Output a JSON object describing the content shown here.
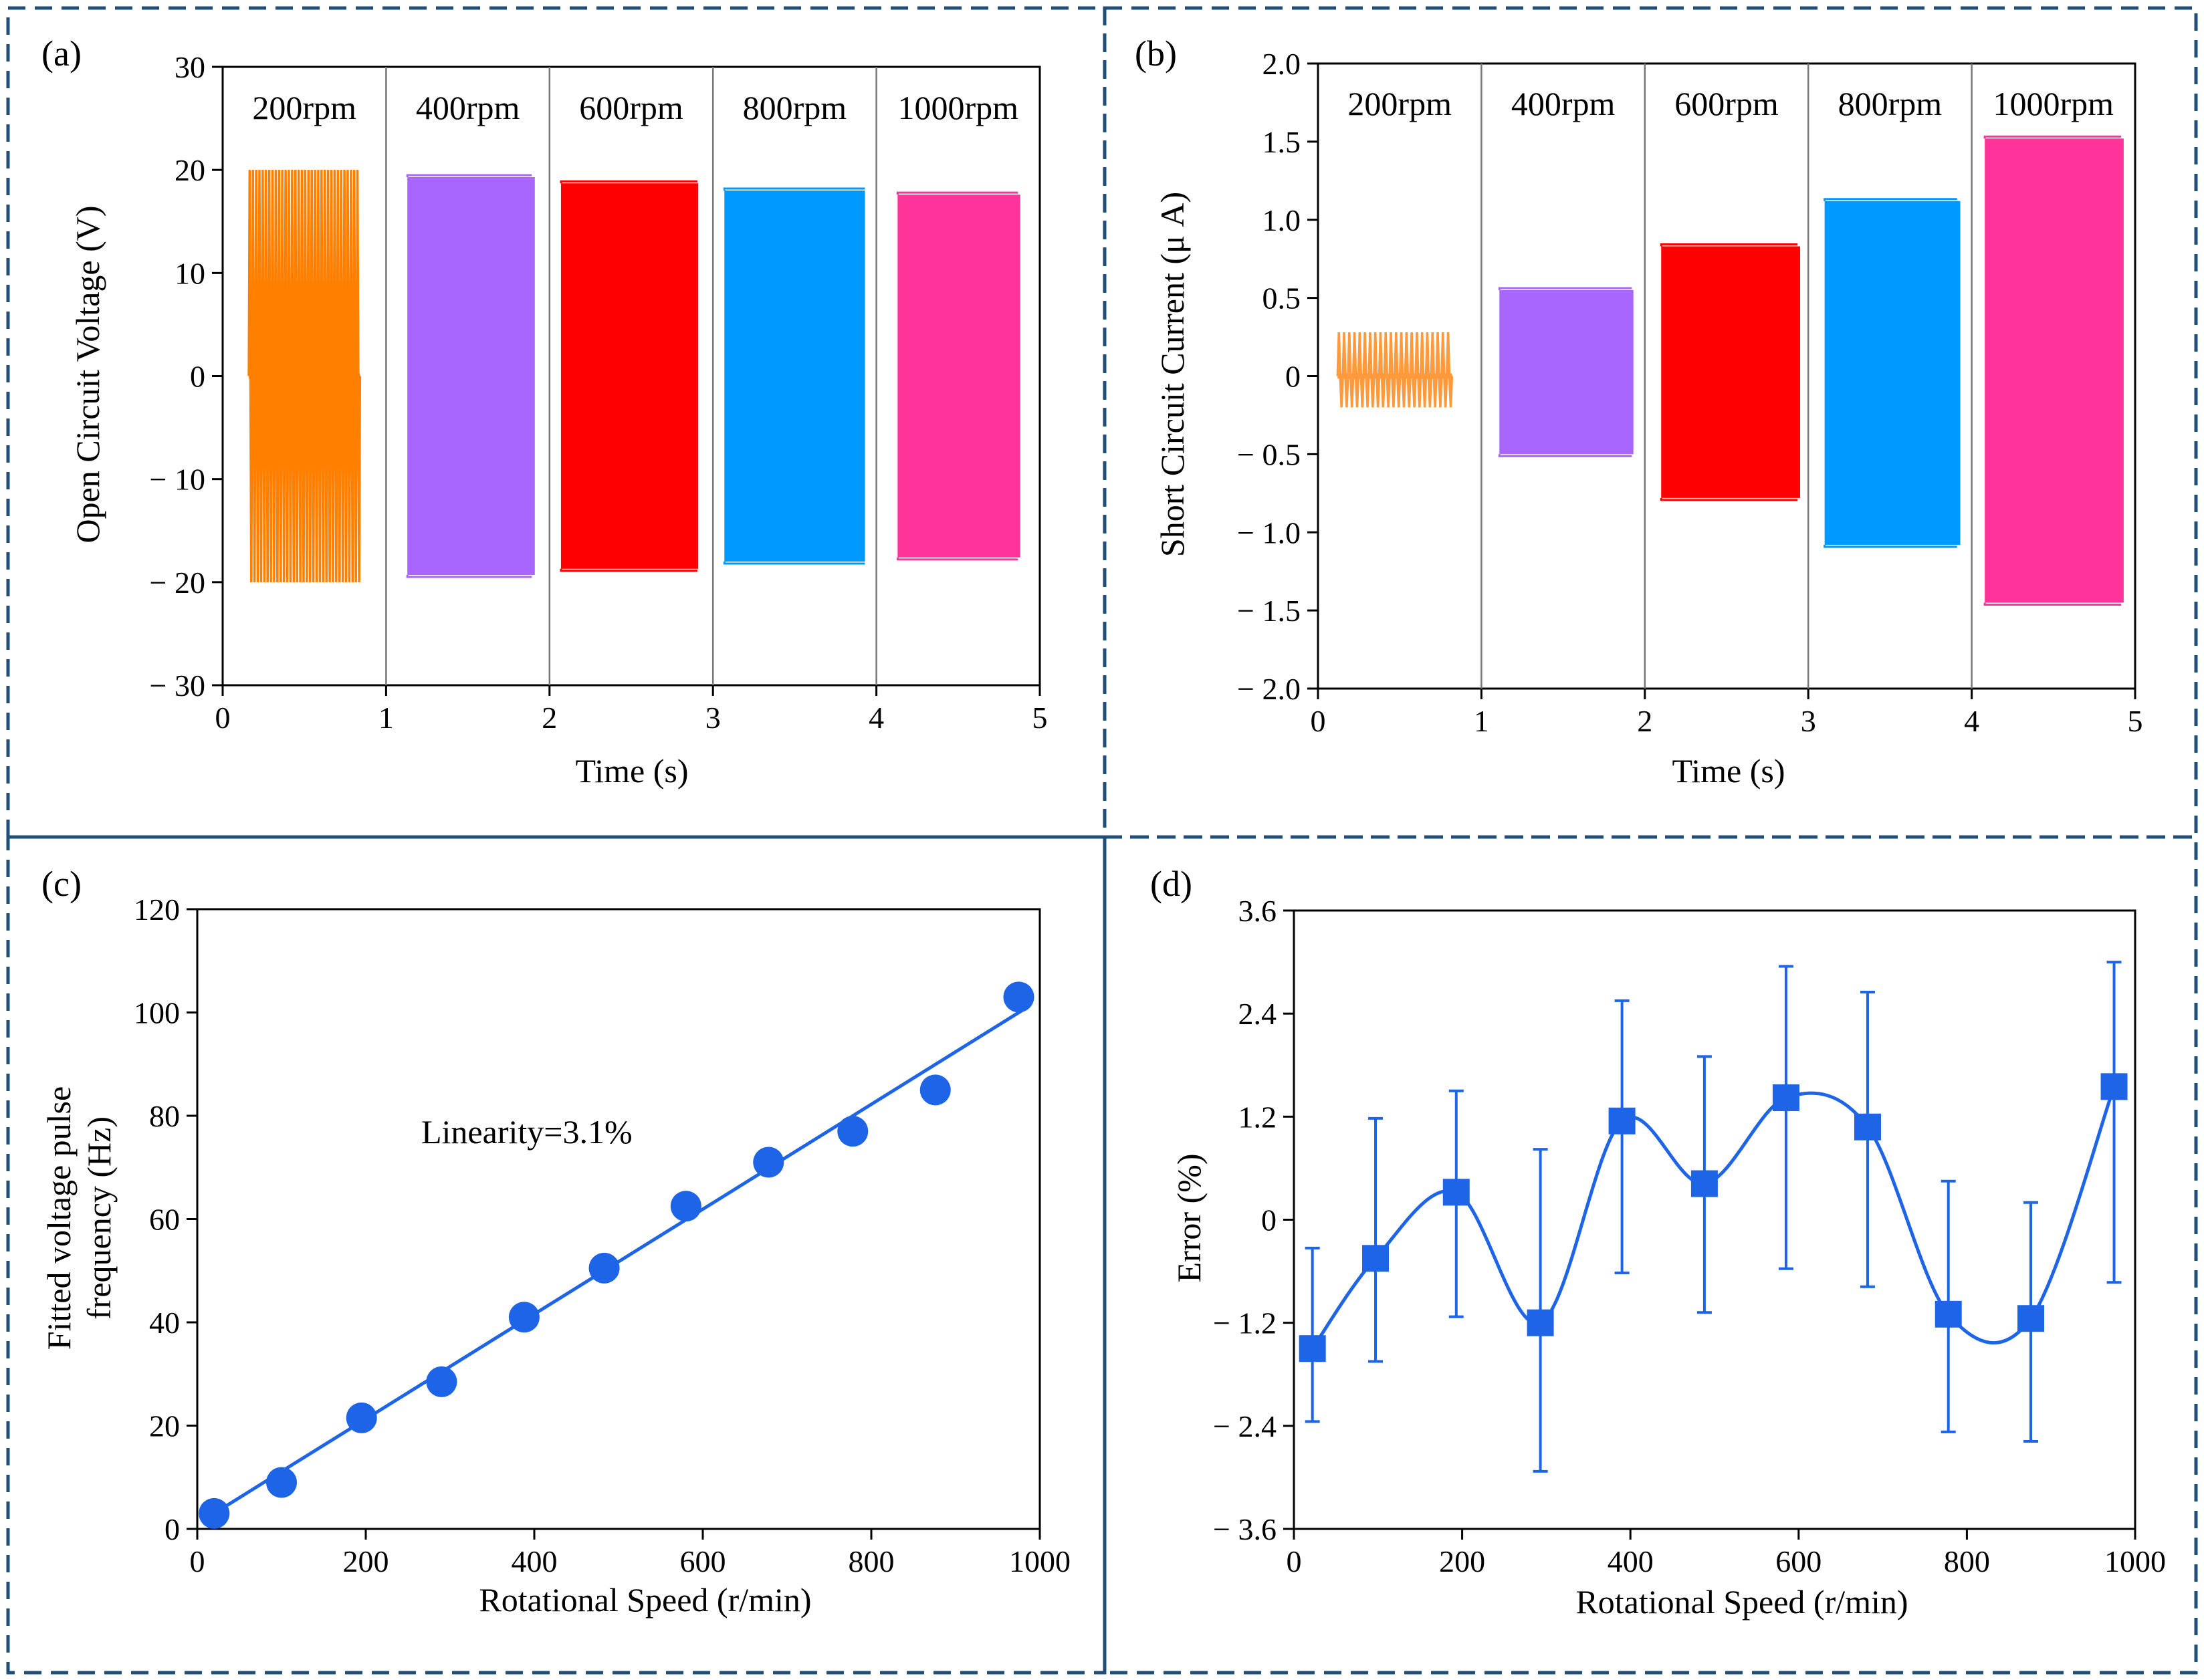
{
  "chart_data": [
    {
      "id": "a",
      "panel_label": "(a)",
      "type": "line",
      "title": "",
      "xlabel": "Time (s)",
      "ylabel": "Open Circuit Voltage (V)",
      "xlim": [
        0,
        5
      ],
      "ylim": [
        -30,
        30
      ],
      "xticks": [
        0,
        1,
        2,
        3,
        4,
        5
      ],
      "yticks": [
        30,
        20,
        10,
        0,
        -10,
        -20,
        -30
      ],
      "ytick_labels": [
        "30",
        "20",
        "10",
        "0",
        "− 10",
        "− 20",
        "− 30"
      ],
      "separators": [
        1,
        2,
        3,
        4
      ],
      "segment_labels": [
        "200rpm",
        "400rpm",
        "600rpm",
        "800rpm",
        "1000rpm"
      ],
      "series": [
        {
          "name": "200rpm",
          "color": "#FF7F00",
          "t_start": 0.16,
          "t_end": 0.84,
          "amplitude_max": 20,
          "amplitude_min": -20,
          "cycles": 34
        },
        {
          "name": "400rpm",
          "color": "#A966FF",
          "t_start": 1.13,
          "t_end": 1.91,
          "amplitude_max": 19.3,
          "amplitude_min": -19.3,
          "cycles": 0
        },
        {
          "name": "600rpm",
          "color": "#FF0000",
          "t_start": 2.07,
          "t_end": 2.91,
          "amplitude_max": 18.7,
          "amplitude_min": -18.7,
          "cycles": 0
        },
        {
          "name": "800rpm",
          "color": "#0099FF",
          "t_start": 3.07,
          "t_end": 3.93,
          "amplitude_max": 18.0,
          "amplitude_min": -18.0,
          "cycles": 0
        },
        {
          "name": "1000rpm",
          "color": "#FF3399",
          "t_start": 4.13,
          "t_end": 4.88,
          "amplitude_max": 17.6,
          "amplitude_min": -17.6,
          "cycles": 0
        }
      ]
    },
    {
      "id": "b",
      "panel_label": "(b)",
      "type": "line",
      "title": "",
      "xlabel": "Time (s)",
      "ylabel": "Short Circuit Current (μ A)",
      "xlim": [
        0,
        5
      ],
      "ylim": [
        -2.0,
        2.0
      ],
      "xticks": [
        0,
        1,
        2,
        3,
        4,
        5
      ],
      "yticks": [
        2.0,
        1.5,
        1.0,
        0.5,
        0,
        -0.5,
        -1.0,
        -1.5,
        -2.0
      ],
      "ytick_labels": [
        "2.0",
        "1.5",
        "1.0",
        "0.5",
        "0",
        "− 0.5",
        "− 1.0",
        "− 1.5",
        "− 2.0"
      ],
      "separators": [
        1,
        2,
        3,
        4
      ],
      "segment_labels": [
        "200rpm",
        "400rpm",
        "600rpm",
        "800rpm",
        "1000rpm"
      ],
      "series": [
        {
          "name": "200rpm",
          "color": "#FF9A3C",
          "t_start": 0.12,
          "t_end": 0.82,
          "amplitude_max": 0.28,
          "amplitude_min": -0.2,
          "cycles": 22
        },
        {
          "name": "400rpm",
          "color": "#A966FF",
          "t_start": 1.11,
          "t_end": 1.93,
          "amplitude_max": 0.55,
          "amplitude_min": -0.5,
          "cycles": 0
        },
        {
          "name": "600rpm",
          "color": "#FF0000",
          "t_start": 2.1,
          "t_end": 2.95,
          "amplitude_max": 0.83,
          "amplitude_min": -0.78,
          "cycles": 0
        },
        {
          "name": "800rpm",
          "color": "#0099FF",
          "t_start": 3.1,
          "t_end": 3.93,
          "amplitude_max": 1.12,
          "amplitude_min": -1.08,
          "cycles": 0
        },
        {
          "name": "1000rpm",
          "color": "#FF3399",
          "t_start": 4.08,
          "t_end": 4.93,
          "amplitude_max": 1.52,
          "amplitude_min": -1.45,
          "cycles": 0
        }
      ]
    },
    {
      "id": "c",
      "panel_label": "(c)",
      "type": "scatter",
      "title": "",
      "xlabel": "Rotational Speed (r/min)",
      "ylabel": "Fitted voltage pulse frequency (Hz)",
      "xlim": [
        0,
        1000
      ],
      "ylim": [
        0,
        120
      ],
      "xticks": [
        0,
        200,
        400,
        600,
        800,
        1000
      ],
      "yticks": [
        0,
        20,
        40,
        60,
        80,
        100,
        120
      ],
      "annotation": "Linearity=3.1%",
      "color": "#1E64E6",
      "x": [
        20,
        100,
        195,
        290,
        388,
        483,
        580,
        678,
        778,
        876,
        975
      ],
      "y": [
        3,
        9,
        21.5,
        28.5,
        41,
        50.5,
        62.5,
        71,
        77,
        85,
        103
      ],
      "fit_line": {
        "x": [
          20,
          980
        ],
        "y": [
          3,
          100.5
        ]
      }
    },
    {
      "id": "d",
      "panel_label": "(d)",
      "type": "line",
      "title": "",
      "xlabel": "Rotational Speed (r/min)",
      "ylabel": "Error (%)",
      "xlim": [
        0,
        1000
      ],
      "ylim": [
        -3.6,
        3.6
      ],
      "xticks": [
        0,
        200,
        400,
        600,
        800,
        1000
      ],
      "yticks": [
        3.6,
        2.4,
        1.2,
        0,
        -1.2,
        -2.4,
        -3.6
      ],
      "ytick_labels": [
        "3.6",
        "2.4",
        "1.2",
        "0",
        "− 1.2",
        "− 2.4",
        "− 3.6"
      ],
      "color": "#1E64E6",
      "x": [
        22,
        97,
        193,
        293,
        390,
        488,
        585,
        682,
        778,
        876,
        975
      ],
      "y": [
        -1.5,
        -0.45,
        0.32,
        -1.2,
        1.15,
        0.42,
        1.42,
        1.08,
        -1.1,
        -1.15,
        1.55
      ],
      "err_upper": [
        -0.33,
        1.18,
        1.5,
        0.82,
        2.55,
        1.9,
        2.95,
        2.65,
        0.45,
        0.2,
        3.0
      ],
      "err_lower": [
        -2.35,
        -1.65,
        -1.13,
        -2.93,
        -0.62,
        -1.08,
        -0.57,
        -0.78,
        -2.47,
        -2.58,
        -0.73
      ]
    }
  ]
}
